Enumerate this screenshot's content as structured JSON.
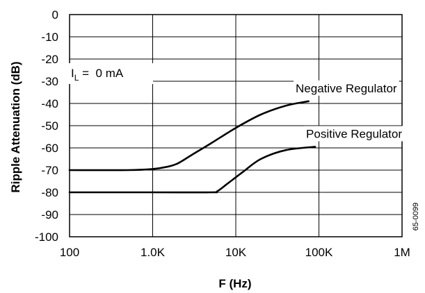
{
  "chart_data": {
    "type": "line",
    "title": "",
    "xlabel": "F (Hz)",
    "ylabel": "Ripple Attenuation (dB)",
    "x_scale": "log",
    "xlim": [
      100,
      1000000
    ],
    "ylim": [
      -100,
      0
    ],
    "grid": true,
    "x_ticks": [
      {
        "value": 100,
        "label": "100"
      },
      {
        "value": 1000,
        "label": "1.0K"
      },
      {
        "value": 10000,
        "label": "10K"
      },
      {
        "value": 100000,
        "label": "100K"
      },
      {
        "value": 1000000,
        "label": "1M"
      }
    ],
    "y_ticks": [
      0,
      -10,
      -20,
      -30,
      -40,
      -50,
      -60,
      -70,
      -80,
      -90,
      -100
    ],
    "y_tick_labels": [
      "0",
      "-10",
      "-20",
      "-30",
      "-40",
      "-50",
      "-60",
      "-70",
      "-80",
      "-90",
      "-100"
    ],
    "condition_label": {
      "symbol": "I",
      "subscript": "L",
      "value": " =  0 mA"
    },
    "figure_code": "65-0099",
    "series": [
      {
        "name": "Negative Regulator",
        "x": [
          100,
          500,
          1000,
          1500,
          2000,
          3000,
          5000,
          10000,
          20000,
          40000,
          75000
        ],
        "y": [
          -70,
          -70,
          -69.5,
          -68.5,
          -67,
          -63,
          -58,
          -51,
          -45,
          -41,
          -39
        ]
      },
      {
        "name": "Positive Regulator",
        "x": [
          100,
          1000,
          5000,
          6000,
          8000,
          12000,
          20000,
          40000,
          90000
        ],
        "y": [
          -80,
          -80,
          -80,
          -79.5,
          -76,
          -71,
          -65,
          -61,
          -59.5
        ]
      }
    ]
  }
}
